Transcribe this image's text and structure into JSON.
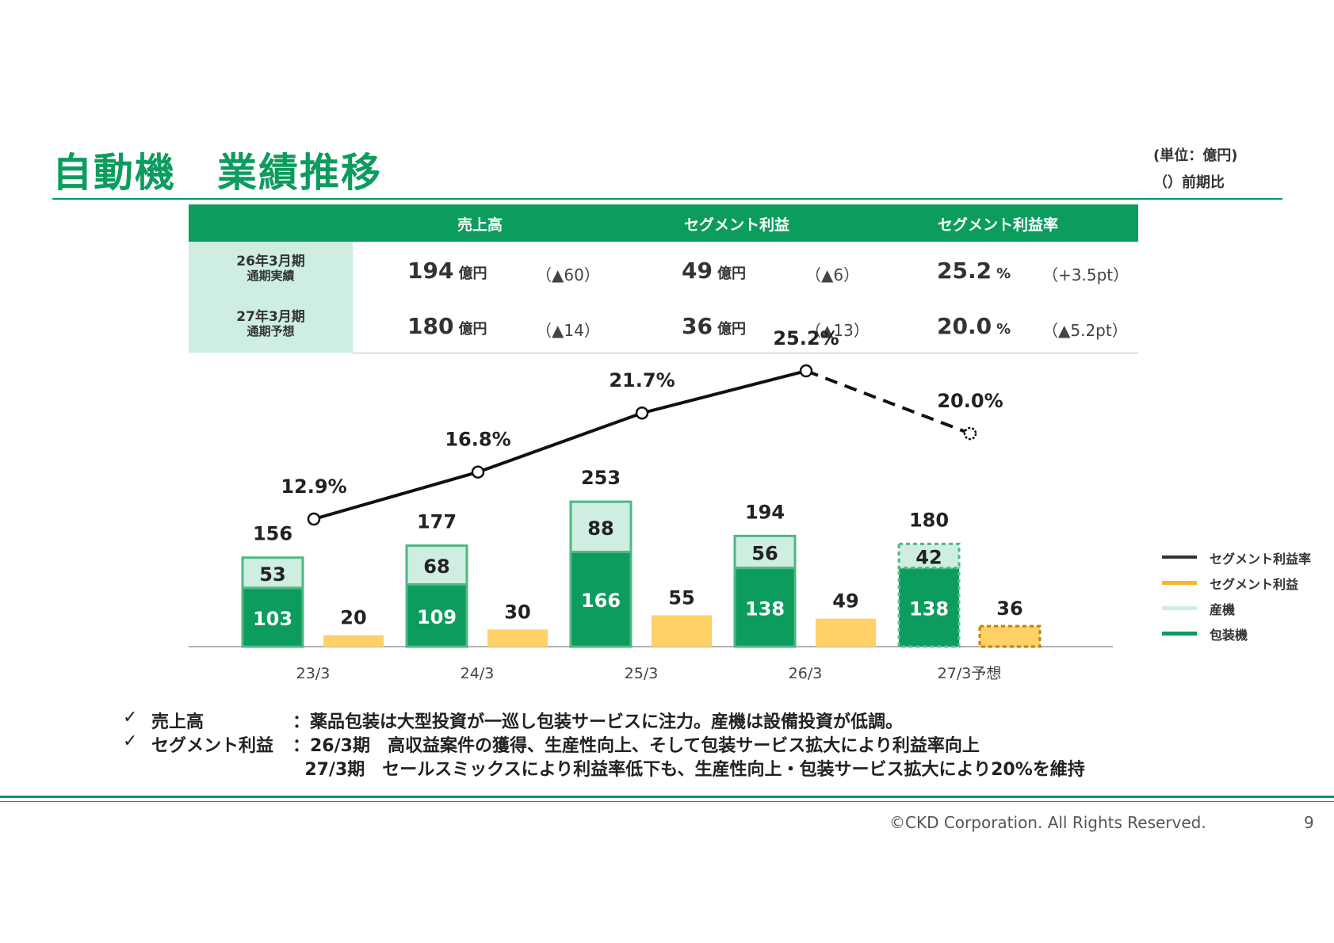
{
  "header": {
    "title": "自動機　業績推移",
    "unit_line1": "(単位：億円)",
    "unit_line2": "（）前期比"
  },
  "table": {
    "columns": [
      "売上高",
      "セグメント利益",
      "セグメント利益率"
    ],
    "rows": [
      {
        "label1": "26年3月期",
        "label2": "通期実績",
        "sales": "194",
        "sales_unit": "億円",
        "sales_diff": "（▲60）",
        "profit": "49",
        "profit_unit": "億円",
        "profit_diff": "（▲6）",
        "margin": "25.2",
        "margin_unit": "%",
        "margin_diff": "（+3.5pt）"
      },
      {
        "label1": "27年3月期",
        "label2": "通期予想",
        "sales": "180",
        "sales_unit": "億円",
        "sales_diff": "（▲14）",
        "profit": "36",
        "profit_unit": "億円",
        "profit_diff": "（▲13）",
        "margin": "20.0",
        "margin_unit": "%",
        "margin_diff": "（▲5.2pt）"
      }
    ]
  },
  "chart_data": {
    "type": "bar",
    "categories": [
      "23/3",
      "24/3",
      "25/3",
      "26/3",
      "27/3予想"
    ],
    "forecast_index": 4,
    "series": [
      {
        "name": "包装機",
        "values": [
          103,
          109,
          166,
          138,
          138
        ],
        "color": "#0c9c5e"
      },
      {
        "name": "産機",
        "values": [
          53,
          68,
          88,
          56,
          42
        ],
        "color": "#cdeee0"
      },
      {
        "name": "セグメント利益",
        "values": [
          20,
          30,
          55,
          49,
          36
        ],
        "color": "#ffd166"
      },
      {
        "name": "セグメント利益率",
        "values": [
          12.9,
          16.8,
          21.7,
          25.2,
          20.0
        ],
        "color": "#111111",
        "type": "line"
      }
    ],
    "totals": [
      156,
      177,
      253,
      194,
      180
    ],
    "margin_labels": [
      "12.9%",
      "16.8%",
      "21.7%",
      "25.2%",
      "20.0%"
    ],
    "legend_order": [
      "セグメント利益率",
      "セグメント利益",
      "産機",
      "包装機"
    ],
    "legend_position": "right"
  },
  "notes": [
    {
      "check": "✓",
      "label": "売上高",
      "text": "：薬品包装は大型投資が一巡し包装サービスに注力。産機は設備投資が低調。"
    },
    {
      "check": "✓",
      "label": "セグメント利益",
      "text": "：26/3期　高収益案件の獲得、生産性向上、そして包装サービス拡大により利益率向上"
    },
    {
      "check": "",
      "label": "",
      "text": "  27/3期　セールスミックスにより利益率低下も、生産性向上・包装サービス拡大により20%を維持"
    }
  ],
  "footer": {
    "copyright": "©CKD Corporation. All Rights Reserved.",
    "page_number": "9"
  }
}
